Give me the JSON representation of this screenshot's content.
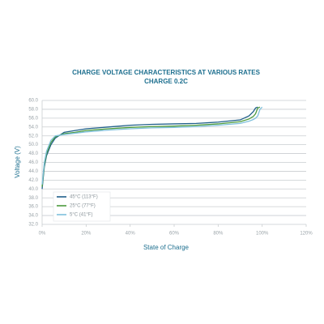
{
  "chart_data": {
    "type": "line",
    "title": "CHARGE VOLTAGE CHARACTERISTICS AT VARIOUS RATES",
    "subtitle": "CHARGE 0.2C",
    "x_label": "State of Charge",
    "y_label": "Voltage (V)",
    "x": [
      0,
      1,
      2,
      4,
      6,
      10,
      15,
      20,
      30,
      40,
      50,
      60,
      70,
      80,
      90,
      94,
      96,
      97,
      98,
      99,
      100
    ],
    "series": [
      {
        "name": "45°C (113°F)",
        "color": "#1f5f8a",
        "values": [
          40,
          45,
          47.5,
          50,
          51.5,
          52.8,
          53.2,
          53.6,
          54.0,
          54.4,
          54.6,
          54.7,
          54.8,
          55.1,
          55.6,
          56.5,
          57.5,
          58.3,
          58.5,
          null,
          null
        ]
      },
      {
        "name": "25°C (77°F)",
        "color": "#4b9a3c",
        "values": [
          40.5,
          45.5,
          48,
          50.5,
          51.8,
          52.5,
          52.8,
          53.2,
          53.6,
          53.9,
          54.1,
          54.2,
          54.4,
          54.7,
          55.2,
          55.8,
          56.4,
          57,
          58.3,
          58.5,
          null
        ]
      },
      {
        "name": "5°C (41°F)",
        "color": "#7fc0dc",
        "values": [
          41,
          46,
          48.5,
          51,
          52,
          52.3,
          52.6,
          52.9,
          53.3,
          53.6,
          53.8,
          53.9,
          54.1,
          54.4,
          54.8,
          55.3,
          55.7,
          56,
          56.5,
          58,
          58.5
        ]
      }
    ],
    "xlim": [
      0,
      120
    ],
    "xticks": [
      {
        "value": 0,
        "label": "0%"
      },
      {
        "value": 20,
        "label": "20%"
      },
      {
        "value": 40,
        "label": "40%"
      },
      {
        "value": 60,
        "label": "60%"
      },
      {
        "value": 80,
        "label": "80%"
      },
      {
        "value": 100,
        "label": "100%"
      },
      {
        "value": 120,
        "label": "120%"
      }
    ],
    "ylim": [
      32,
      60
    ],
    "yticks": [
      {
        "value": 32,
        "label": "32.0"
      },
      {
        "value": 34,
        "label": "34.0"
      },
      {
        "value": 36,
        "label": "36.0"
      },
      {
        "value": 38,
        "label": "38.0"
      },
      {
        "value": 40,
        "label": "40.0"
      },
      {
        "value": 42,
        "label": "42.0"
      },
      {
        "value": 44,
        "label": "44.0"
      },
      {
        "value": 46,
        "label": "46.0"
      },
      {
        "value": 48,
        "label": "48.0"
      },
      {
        "value": 50,
        "label": "50.0"
      },
      {
        "value": 52,
        "label": "52.0"
      },
      {
        "value": 54,
        "label": "54.0"
      },
      {
        "value": 56,
        "label": "56.0"
      },
      {
        "value": 58,
        "label": "58.0"
      },
      {
        "value": 60,
        "label": "60.0"
      }
    ],
    "grid": true,
    "legend": "lower-left"
  }
}
